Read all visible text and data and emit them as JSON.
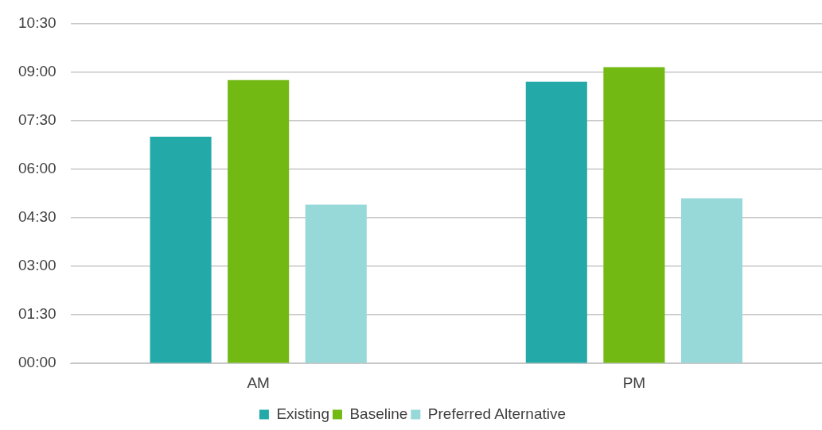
{
  "chart_data": {
    "type": "bar",
    "categories": [
      "AM",
      "PM"
    ],
    "series": [
      {
        "name": "Existing",
        "color": "#24a9a9",
        "values": [
          7.0,
          8.7
        ]
      },
      {
        "name": "Baseline",
        "color": "#72b913",
        "values": [
          8.75,
          9.15
        ]
      },
      {
        "name": "Preferred Alternative",
        "color": "#97d8d8",
        "values": [
          4.9,
          5.1
        ]
      }
    ],
    "ylim": [
      0,
      10.5
    ],
    "yticks": [
      {
        "value": 0,
        "label": "00:00"
      },
      {
        "value": 1.5,
        "label": "01:30"
      },
      {
        "value": 3,
        "label": "03:00"
      },
      {
        "value": 4.5,
        "label": "04:30"
      },
      {
        "value": 6,
        "label": "06:00"
      },
      {
        "value": 7.5,
        "label": "07:30"
      },
      {
        "value": 9,
        "label": "09:00"
      },
      {
        "value": 10.5,
        "label": "10:30"
      }
    ],
    "grid": "y",
    "legend": "bottom"
  }
}
